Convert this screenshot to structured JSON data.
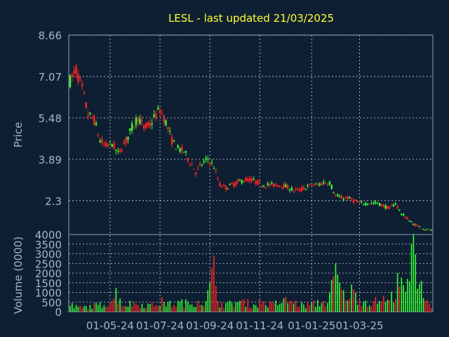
{
  "colors": {
    "background": "#0f1f33",
    "title": "#ffff33",
    "axis_text": "#9fb6cc",
    "grid": "#c8d2dc",
    "up": "#33ff33",
    "down": "#ff2222"
  },
  "chart_data": [
    {
      "type": "candlestick",
      "title": "LESL - last updated 21/03/2025",
      "ylabel": "Price",
      "ylim": [
        1.0,
        8.66
      ],
      "yticks": [
        "8.66",
        "7.07",
        "5.48",
        "3.89",
        "2.3"
      ],
      "ytick_values": [
        8.66,
        7.07,
        5.48,
        3.89,
        2.3
      ],
      "grid": true,
      "series": [
        {
          "values": [
            [
              0,
              6.9
            ],
            [
              3,
              7.3
            ],
            [
              6,
              6.6
            ],
            [
              9,
              5.6
            ],
            [
              12,
              5.4
            ],
            [
              15,
              4.6
            ],
            [
              18,
              4.4
            ],
            [
              21,
              4.5
            ],
            [
              24,
              4.1
            ],
            [
              28,
              4.6
            ],
            [
              31,
              5.1
            ],
            [
              34,
              5.5
            ],
            [
              37,
              5.1
            ],
            [
              40,
              5.2
            ],
            [
              43,
              5.6
            ],
            [
              45,
              5.8
            ],
            [
              48,
              5.3
            ],
            [
              51,
              4.6
            ],
            [
              54,
              4.3
            ],
            [
              57,
              4.2
            ],
            [
              60,
              3.8
            ],
            [
              63,
              3.4
            ],
            [
              66,
              3.7
            ],
            [
              69,
              3.9
            ],
            [
              72,
              3.6
            ],
            [
              75,
              2.9
            ],
            [
              78,
              2.8
            ],
            [
              81,
              2.9
            ],
            [
              84,
              3.0
            ],
            [
              87,
              3.1
            ],
            [
              90,
              3.1
            ],
            [
              94,
              3.0
            ],
            [
              97,
              2.9
            ],
            [
              100,
              2.9
            ],
            [
              103,
              2.9
            ],
            [
              106,
              2.9
            ],
            [
              109,
              2.8
            ],
            [
              112,
              2.7
            ],
            [
              115,
              2.7
            ],
            [
              118,
              2.8
            ],
            [
              121,
              2.9
            ],
            [
              124,
              2.9
            ],
            [
              127,
              3.0
            ],
            [
              130,
              3.0
            ],
            [
              133,
              2.5
            ],
            [
              136,
              2.4
            ],
            [
              139,
              2.4
            ],
            [
              142,
              2.3
            ],
            [
              145,
              2.2
            ],
            [
              148,
              2.2
            ],
            [
              151,
              2.2
            ],
            [
              154,
              2.2
            ],
            [
              157,
              2.1
            ],
            [
              160,
              2.0
            ],
            [
              163,
              2.2
            ],
            [
              166,
              1.8
            ],
            [
              169,
              1.6
            ],
            [
              172,
              1.4
            ],
            [
              175,
              1.3
            ],
            [
              178,
              1.2
            ],
            [
              181,
              1.15
            ]
          ]
        }
      ]
    },
    {
      "type": "bar",
      "ylabel": "Volume (0000)",
      "ylim": [
        0,
        4000
      ],
      "yticks": [
        "4000",
        "3500",
        "3000",
        "2500",
        "2000",
        "1500",
        "1000",
        "500",
        "0"
      ],
      "ytick_values": [
        4000,
        3500,
        3000,
        2500,
        2000,
        1500,
        1000,
        500,
        0
      ],
      "grid": true,
      "xticks": [
        "01-05-24",
        "01-07-24",
        "01-09-24",
        "01-11-24",
        "01-01-25",
        "01-03-25"
      ],
      "xtick_positions": [
        20,
        45,
        70,
        95,
        121,
        145
      ],
      "series": [
        {
          "values": [
            [
              2,
              350
            ],
            [
              6,
              300
            ],
            [
              11,
              400
            ],
            [
              16,
              500
            ],
            [
              20,
              700
            ],
            [
              23,
              1300
            ],
            [
              27,
              450
            ],
            [
              31,
              600
            ],
            [
              36,
              500
            ],
            [
              41,
              450
            ],
            [
              46,
              700
            ],
            [
              51,
              500
            ],
            [
              56,
              650
            ],
            [
              60,
              550
            ],
            [
              64,
              800
            ],
            [
              68,
              600
            ],
            [
              72,
              2900
            ],
            [
              75,
              600
            ],
            [
              79,
              500
            ],
            [
              83,
              700
            ],
            [
              88,
              650
            ],
            [
              92,
              450
            ],
            [
              96,
              700
            ],
            [
              100,
              500
            ],
            [
              104,
              600
            ],
            [
              109,
              800
            ],
            [
              113,
              600
            ],
            [
              117,
              450
            ],
            [
              121,
              500
            ],
            [
              125,
              650
            ],
            [
              129,
              700
            ],
            [
              133,
              2500
            ],
            [
              137,
              1100
            ],
            [
              141,
              1400
            ],
            [
              146,
              800
            ],
            [
              151,
              600
            ],
            [
              156,
              900
            ],
            [
              160,
              700
            ],
            [
              164,
              2000
            ],
            [
              168,
              1300
            ],
            [
              172,
              4000
            ],
            [
              176,
              1600
            ],
            [
              178,
              800
            ],
            [
              181,
              500
            ]
          ]
        }
      ]
    }
  ]
}
